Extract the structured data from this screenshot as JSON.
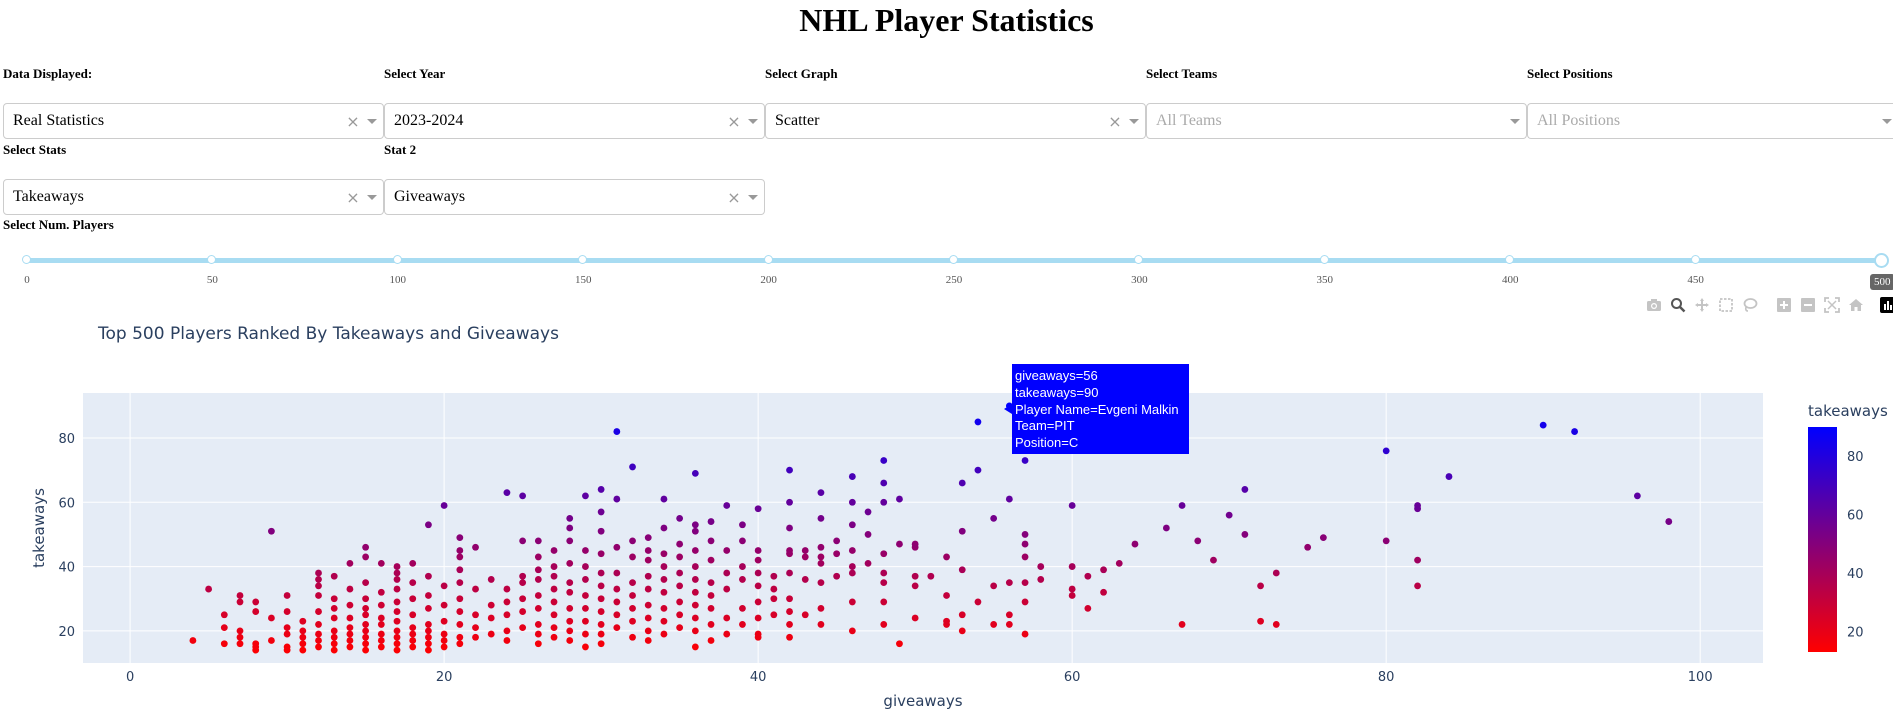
{
  "page": {
    "title": "NHL Player Statistics"
  },
  "controls": {
    "data_displayed": {
      "label": "Data Displayed:",
      "value": "Real Statistics"
    },
    "year": {
      "label": "Select Year",
      "value": "2023-2024"
    },
    "graph": {
      "label": "Select Graph",
      "value": "Scatter"
    },
    "teams": {
      "label": "Select Teams",
      "placeholder": "All Teams"
    },
    "positions": {
      "label": "Select Positions",
      "placeholder": "All Positions"
    },
    "stats": {
      "label": "Select Stats",
      "value": "Takeaways"
    },
    "stat2": {
      "label": "Stat 2",
      "value": "Giveaways"
    },
    "num_players": {
      "label": "Select Num. Players",
      "marks": [
        "0",
        "50",
        "100",
        "150",
        "200",
        "250",
        "300",
        "350",
        "400",
        "450"
      ],
      "value": "500",
      "min": 0,
      "max": 500
    },
    "clear_glyph": "×"
  },
  "modebar": {
    "icons": [
      "camera-icon",
      "zoom-icon",
      "pan-icon",
      "box-select-icon",
      "lasso-icon",
      "zoom-in-icon",
      "zoom-out-icon",
      "autoscale-icon",
      "reset-axes-icon",
      "plotly-logo-icon"
    ]
  },
  "chart_data": {
    "type": "scatter",
    "title": "Top 500 Players Ranked By Takeaways and Giveaways",
    "xlabel": "giveaways",
    "ylabel": "takeaways",
    "xlim": [
      -3,
      104
    ],
    "ylim": [
      10,
      94
    ],
    "xticks": [
      0,
      20,
      40,
      60,
      80,
      100
    ],
    "yticks": [
      20,
      40,
      60,
      80
    ],
    "grid": true,
    "colorbar": {
      "title": "takeaways",
      "min": 13,
      "max": 90,
      "ticks": [
        20,
        40,
        60,
        80
      ],
      "colors": [
        "#ff0000",
        "#0000ff"
      ]
    },
    "hover": {
      "lines": [
        "giveaways=56",
        "takeaways=90",
        "Player Name=Evgeni Malkin",
        "Team=PIT",
        "Position=C"
      ],
      "point": [
        56,
        90
      ]
    },
    "points": [
      [
        4,
        17
      ],
      [
        5,
        33
      ],
      [
        6,
        16
      ],
      [
        6,
        21
      ],
      [
        6,
        25
      ],
      [
        7,
        16
      ],
      [
        7,
        18
      ],
      [
        7,
        20
      ],
      [
        7,
        29
      ],
      [
        7,
        31
      ],
      [
        8,
        14
      ],
      [
        8,
        15
      ],
      [
        8,
        16
      ],
      [
        8,
        26
      ],
      [
        8,
        29
      ],
      [
        9,
        17
      ],
      [
        9,
        51
      ],
      [
        9,
        24
      ],
      [
        10,
        14
      ],
      [
        10,
        15
      ],
      [
        10,
        19
      ],
      [
        10,
        21
      ],
      [
        10,
        26
      ],
      [
        10,
        31
      ],
      [
        11,
        14
      ],
      [
        11,
        16
      ],
      [
        11,
        18
      ],
      [
        11,
        20
      ],
      [
        11,
        23
      ],
      [
        12,
        15
      ],
      [
        12,
        17
      ],
      [
        12,
        19
      ],
      [
        12,
        22
      ],
      [
        12,
        26
      ],
      [
        12,
        31
      ],
      [
        12,
        34
      ],
      [
        12,
        36
      ],
      [
        12,
        38
      ],
      [
        13,
        14
      ],
      [
        13,
        16
      ],
      [
        13,
        18
      ],
      [
        13,
        20
      ],
      [
        13,
        24
      ],
      [
        13,
        27
      ],
      [
        13,
        30
      ],
      [
        13,
        37
      ],
      [
        14,
        15
      ],
      [
        14,
        17
      ],
      [
        14,
        19
      ],
      [
        14,
        21
      ],
      [
        14,
        24
      ],
      [
        14,
        28
      ],
      [
        14,
        33
      ],
      [
        14,
        41
      ],
      [
        15,
        14
      ],
      [
        15,
        16
      ],
      [
        15,
        18
      ],
      [
        15,
        20
      ],
      [
        15,
        22
      ],
      [
        15,
        25
      ],
      [
        15,
        27
      ],
      [
        15,
        30
      ],
      [
        15,
        35
      ],
      [
        15,
        43
      ],
      [
        15,
        46
      ],
      [
        16,
        15
      ],
      [
        16,
        17
      ],
      [
        16,
        19
      ],
      [
        16,
        22
      ],
      [
        16,
        24
      ],
      [
        16,
        28
      ],
      [
        16,
        32
      ],
      [
        16,
        41
      ],
      [
        17,
        14
      ],
      [
        17,
        16
      ],
      [
        17,
        18
      ],
      [
        17,
        20
      ],
      [
        17,
        23
      ],
      [
        17,
        26
      ],
      [
        17,
        29
      ],
      [
        17,
        33
      ],
      [
        17,
        36
      ],
      [
        17,
        38
      ],
      [
        17,
        40
      ],
      [
        18,
        15
      ],
      [
        18,
        17
      ],
      [
        18,
        19
      ],
      [
        18,
        21
      ],
      [
        18,
        25
      ],
      [
        18,
        30
      ],
      [
        18,
        35
      ],
      [
        18,
        41
      ],
      [
        19,
        14
      ],
      [
        19,
        16
      ],
      [
        19,
        18
      ],
      [
        19,
        20
      ],
      [
        19,
        22
      ],
      [
        19,
        27
      ],
      [
        19,
        31
      ],
      [
        19,
        37
      ],
      [
        19,
        53
      ],
      [
        20,
        15
      ],
      [
        20,
        17
      ],
      [
        20,
        19
      ],
      [
        20,
        23
      ],
      [
        20,
        28
      ],
      [
        20,
        34
      ],
      [
        20,
        59
      ],
      [
        21,
        16
      ],
      [
        21,
        18
      ],
      [
        21,
        22
      ],
      [
        21,
        26
      ],
      [
        21,
        30
      ],
      [
        21,
        35
      ],
      [
        21,
        39
      ],
      [
        21,
        43
      ],
      [
        21,
        45
      ],
      [
        21,
        49
      ],
      [
        22,
        18
      ],
      [
        22,
        21
      ],
      [
        22,
        25
      ],
      [
        22,
        33
      ],
      [
        22,
        46
      ],
      [
        23,
        19
      ],
      [
        23,
        24
      ],
      [
        23,
        28
      ],
      [
        23,
        36
      ],
      [
        24,
        17
      ],
      [
        24,
        20
      ],
      [
        24,
        25
      ],
      [
        24,
        29
      ],
      [
        24,
        33
      ],
      [
        24,
        63
      ],
      [
        25,
        21
      ],
      [
        25,
        26
      ],
      [
        25,
        30
      ],
      [
        25,
        35
      ],
      [
        25,
        37
      ],
      [
        25,
        48
      ],
      [
        25,
        62
      ],
      [
        26,
        16
      ],
      [
        26,
        19
      ],
      [
        26,
        22
      ],
      [
        26,
        27
      ],
      [
        26,
        31
      ],
      [
        26,
        36
      ],
      [
        26,
        39
      ],
      [
        26,
        43
      ],
      [
        26,
        48
      ],
      [
        27,
        18
      ],
      [
        27,
        21
      ],
      [
        27,
        25
      ],
      [
        27,
        29
      ],
      [
        27,
        33
      ],
      [
        27,
        37
      ],
      [
        27,
        40
      ],
      [
        27,
        45
      ],
      [
        28,
        17
      ],
      [
        28,
        20
      ],
      [
        28,
        23
      ],
      [
        28,
        27
      ],
      [
        28,
        32
      ],
      [
        28,
        35
      ],
      [
        28,
        41
      ],
      [
        28,
        48
      ],
      [
        28,
        55
      ],
      [
        28,
        52
      ],
      [
        29,
        15
      ],
      [
        29,
        19
      ],
      [
        29,
        23
      ],
      [
        29,
        27
      ],
      [
        29,
        31
      ],
      [
        29,
        36
      ],
      [
        29,
        40
      ],
      [
        29,
        45
      ],
      [
        29,
        62
      ],
      [
        30,
        16
      ],
      [
        30,
        19
      ],
      [
        30,
        22
      ],
      [
        30,
        26
      ],
      [
        30,
        30
      ],
      [
        30,
        34
      ],
      [
        30,
        38
      ],
      [
        30,
        44
      ],
      [
        30,
        51
      ],
      [
        30,
        57
      ],
      [
        30,
        64
      ],
      [
        31,
        21
      ],
      [
        31,
        25
      ],
      [
        31,
        29
      ],
      [
        31,
        33
      ],
      [
        31,
        38
      ],
      [
        31,
        46
      ],
      [
        31,
        61
      ],
      [
        31,
        82
      ],
      [
        32,
        18
      ],
      [
        32,
        23
      ],
      [
        32,
        27
      ],
      [
        32,
        31
      ],
      [
        32,
        35
      ],
      [
        32,
        43
      ],
      [
        32,
        48
      ],
      [
        32,
        71
      ],
      [
        33,
        17
      ],
      [
        33,
        20
      ],
      [
        33,
        24
      ],
      [
        33,
        28
      ],
      [
        33,
        33
      ],
      [
        33,
        37
      ],
      [
        33,
        42
      ],
      [
        33,
        45
      ],
      [
        33,
        49
      ],
      [
        34,
        19
      ],
      [
        34,
        23
      ],
      [
        34,
        27
      ],
      [
        34,
        32
      ],
      [
        34,
        36
      ],
      [
        34,
        40
      ],
      [
        34,
        44
      ],
      [
        34,
        52
      ],
      [
        34,
        61
      ],
      [
        35,
        21
      ],
      [
        35,
        25
      ],
      [
        35,
        29
      ],
      [
        35,
        34
      ],
      [
        35,
        38
      ],
      [
        35,
        43
      ],
      [
        35,
        47
      ],
      [
        35,
        55
      ],
      [
        36,
        15
      ],
      [
        36,
        20
      ],
      [
        36,
        24
      ],
      [
        36,
        28
      ],
      [
        36,
        32
      ],
      [
        36,
        36
      ],
      [
        36,
        40
      ],
      [
        36,
        45
      ],
      [
        36,
        51
      ],
      [
        36,
        53
      ],
      [
        36,
        69
      ],
      [
        37,
        17
      ],
      [
        37,
        22
      ],
      [
        37,
        27
      ],
      [
        37,
        31
      ],
      [
        37,
        35
      ],
      [
        37,
        42
      ],
      [
        37,
        48
      ],
      [
        37,
        54
      ],
      [
        38,
        19
      ],
      [
        38,
        24
      ],
      [
        38,
        33
      ],
      [
        38,
        38
      ],
      [
        38,
        45
      ],
      [
        38,
        59
      ],
      [
        39,
        22
      ],
      [
        39,
        27
      ],
      [
        39,
        36
      ],
      [
        39,
        40
      ],
      [
        39,
        48
      ],
      [
        39,
        53
      ],
      [
        40,
        18
      ],
      [
        40,
        19
      ],
      [
        40,
        24
      ],
      [
        40,
        29
      ],
      [
        40,
        34
      ],
      [
        40,
        38
      ],
      [
        40,
        42
      ],
      [
        40,
        45
      ],
      [
        40,
        58
      ],
      [
        41,
        25
      ],
      [
        41,
        30
      ],
      [
        41,
        33
      ],
      [
        41,
        37
      ],
      [
        42,
        18
      ],
      [
        42,
        22
      ],
      [
        42,
        26
      ],
      [
        42,
        30
      ],
      [
        42,
        38
      ],
      [
        42,
        44
      ],
      [
        42,
        45
      ],
      [
        42,
        52
      ],
      [
        42,
        60
      ],
      [
        42,
        70
      ],
      [
        43,
        25
      ],
      [
        43,
        36
      ],
      [
        43,
        43
      ],
      [
        43,
        45
      ],
      [
        44,
        22
      ],
      [
        44,
        27
      ],
      [
        44,
        35
      ],
      [
        44,
        41
      ],
      [
        44,
        43
      ],
      [
        44,
        46
      ],
      [
        44,
        55
      ],
      [
        44,
        63
      ],
      [
        45,
        37
      ],
      [
        45,
        44
      ],
      [
        45,
        48
      ],
      [
        46,
        20
      ],
      [
        46,
        29
      ],
      [
        46,
        38
      ],
      [
        46,
        40
      ],
      [
        46,
        45
      ],
      [
        46,
        53
      ],
      [
        46,
        60
      ],
      [
        46,
        68
      ],
      [
        47,
        41
      ],
      [
        47,
        50
      ],
      [
        47,
        57
      ],
      [
        48,
        22
      ],
      [
        48,
        29
      ],
      [
        48,
        35
      ],
      [
        48,
        38
      ],
      [
        48,
        44
      ],
      [
        48,
        60
      ],
      [
        48,
        66
      ],
      [
        48,
        73
      ],
      [
        49,
        16
      ],
      [
        49,
        47
      ],
      [
        49,
        61
      ],
      [
        50,
        24
      ],
      [
        50,
        34
      ],
      [
        50,
        37
      ],
      [
        50,
        46
      ],
      [
        50,
        47
      ],
      [
        51,
        37
      ],
      [
        52,
        22
      ],
      [
        52,
        23
      ],
      [
        52,
        31
      ],
      [
        52,
        43
      ],
      [
        53,
        20
      ],
      [
        53,
        25
      ],
      [
        53,
        39
      ],
      [
        53,
        51
      ],
      [
        53,
        66
      ],
      [
        54,
        29
      ],
      [
        54,
        70
      ],
      [
        54,
        85
      ],
      [
        55,
        22
      ],
      [
        55,
        34
      ],
      [
        55,
        55
      ],
      [
        56,
        22
      ],
      [
        56,
        25
      ],
      [
        56,
        35
      ],
      [
        56,
        61
      ],
      [
        56,
        90
      ],
      [
        57,
        19
      ],
      [
        57,
        29
      ],
      [
        57,
        35
      ],
      [
        57,
        43
      ],
      [
        57,
        47
      ],
      [
        57,
        50
      ],
      [
        57,
        73
      ],
      [
        58,
        36
      ],
      [
        58,
        40
      ],
      [
        60,
        31
      ],
      [
        60,
        33
      ],
      [
        60,
        40
      ],
      [
        60,
        59
      ],
      [
        61,
        27
      ],
      [
        61,
        37
      ],
      [
        62,
        32
      ],
      [
        62,
        39
      ],
      [
        63,
        41
      ],
      [
        64,
        47
      ],
      [
        66,
        52
      ],
      [
        67,
        22
      ],
      [
        67,
        59
      ],
      [
        68,
        48
      ],
      [
        69,
        42
      ],
      [
        70,
        56
      ],
      [
        71,
        50
      ],
      [
        71,
        64
      ],
      [
        72,
        34
      ],
      [
        72,
        23
      ],
      [
        73,
        22
      ],
      [
        73,
        38
      ],
      [
        75,
        46
      ],
      [
        76,
        49
      ],
      [
        80,
        48
      ],
      [
        80,
        76
      ],
      [
        82,
        34
      ],
      [
        82,
        42
      ],
      [
        82,
        58
      ],
      [
        82,
        59
      ],
      [
        84,
        68
      ],
      [
        90,
        84
      ],
      [
        92,
        82
      ],
      [
        96,
        62
      ],
      [
        98,
        54
      ]
    ]
  }
}
